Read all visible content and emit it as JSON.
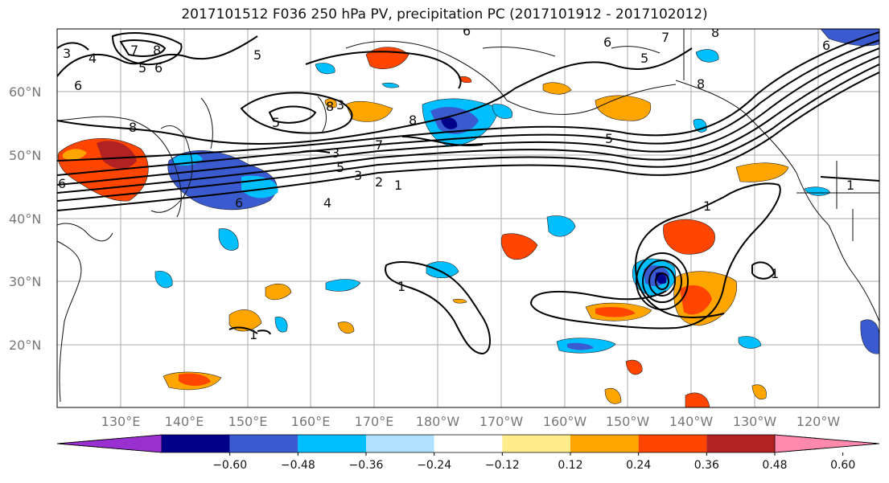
{
  "title": "2017101512 F036 250 hPa PV, precipitation PC (2017101912 - 2017102012)",
  "lat_labels": [
    "60°N",
    "50°N",
    "40°N",
    "30°N",
    "20°N"
  ],
  "lon_labels": [
    "130°E",
    "140°E",
    "150°E",
    "160°E",
    "170°E",
    "180°W",
    "170°W",
    "160°W",
    "150°W",
    "140°W",
    "130°W",
    "120°W"
  ],
  "colorbar": {
    "colors": [
      "#9b30d0",
      "#00008b",
      "#3a5bd0",
      "#00bfff",
      "#b0e2ff",
      "#ffffff",
      "#ffec8b",
      "#ffa500",
      "#ff4500",
      "#b22222",
      "#ff89ad"
    ],
    "ticks": [
      "−0.60",
      "−0.48",
      "−0.36",
      "−0.24",
      "−0.12",
      "0.12",
      "0.24",
      "0.36",
      "0.48",
      "0.60"
    ]
  },
  "contour_labels": [
    "3",
    "4",
    "7",
    "8",
    "5",
    "6",
    "6",
    "5",
    "6",
    "7",
    "5",
    "8",
    "6",
    "6",
    "8",
    "5",
    "8",
    "8",
    "8",
    "5",
    "3",
    "7",
    "5",
    "3",
    "2",
    "1",
    "4",
    "6",
    "6",
    "1",
    "1",
    "1",
    "1",
    "1",
    "3"
  ]
}
